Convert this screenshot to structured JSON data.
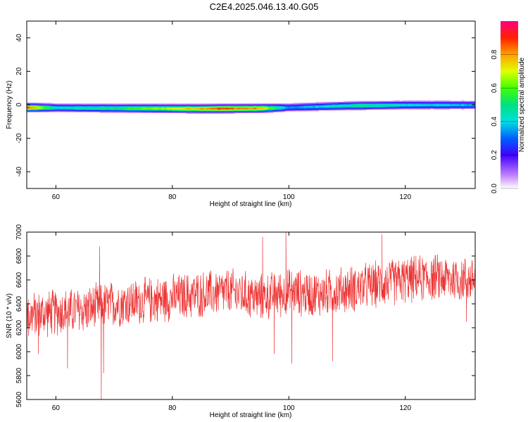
{
  "chart_data": {
    "title": "C2E4.2025.046.13.40.G05",
    "panels": [
      {
        "type": "heatmap",
        "xlabel": "Height of straight line (km)",
        "ylabel": "Frequency (Hz)",
        "xlim": [
          55,
          132
        ],
        "ylim": [
          -50,
          50
        ],
        "xticks": [
          60,
          80,
          100,
          120
        ],
        "yticks": [
          -40,
          -20,
          0,
          20,
          40
        ],
        "colorbar": {
          "label": "Normalized spectral amplitude",
          "range": [
            0,
            1
          ],
          "ticks": [
            "0.0",
            "0.2",
            "0.4",
            "0.6",
            "0.8"
          ]
        },
        "center_frequency": [
          {
            "x": 55,
            "y": -1.5
          },
          {
            "x": 65,
            "y": -1.8
          },
          {
            "x": 75,
            "y": -2.0
          },
          {
            "x": 85,
            "y": -2.2
          },
          {
            "x": 95,
            "y": -2.0
          },
          {
            "x": 100,
            "y": -1.5
          },
          {
            "x": 110,
            "y": -0.5
          },
          {
            "x": 120,
            "y": 0
          },
          {
            "x": 132,
            "y": 0
          }
        ],
        "peak_amplitude": [
          {
            "x": 55,
            "v": 0.95
          },
          {
            "x": 60,
            "v": 0.45
          },
          {
            "x": 70,
            "v": 0.55
          },
          {
            "x": 80,
            "v": 0.75
          },
          {
            "x": 88,
            "v": 0.95
          },
          {
            "x": 95,
            "v": 0.85
          },
          {
            "x": 100,
            "v": 0.35
          },
          {
            "x": 113,
            "v": 0.55
          },
          {
            "x": 120,
            "v": 0.45
          },
          {
            "x": 132,
            "v": 0.4
          }
        ]
      },
      {
        "type": "line",
        "xlabel": "Height of straight line (km)",
        "ylabel": "SNR (10 * v/v)",
        "xlim": [
          55,
          132
        ],
        "ylim": [
          5600,
          7000
        ],
        "xticks": [
          60,
          80,
          100,
          120
        ],
        "yticks": [
          5600,
          5800,
          6000,
          6200,
          6400,
          6600,
          6800,
          7000
        ],
        "series": [
          {
            "color": "#ee3333",
            "trend": [
              {
                "x": 55,
                "y": 6300
              },
              {
                "x": 60,
                "y": 6330
              },
              {
                "x": 65,
                "y": 6350
              },
              {
                "x": 70,
                "y": 6400
              },
              {
                "x": 75,
                "y": 6420
              },
              {
                "x": 80,
                "y": 6450
              },
              {
                "x": 85,
                "y": 6480
              },
              {
                "x": 90,
                "y": 6500
              },
              {
                "x": 95,
                "y": 6450
              },
              {
                "x": 100,
                "y": 6500
              },
              {
                "x": 105,
                "y": 6480
              },
              {
                "x": 110,
                "y": 6520
              },
              {
                "x": 115,
                "y": 6560
              },
              {
                "x": 120,
                "y": 6600
              },
              {
                "x": 125,
                "y": 6620
              },
              {
                "x": 132,
                "y": 6600
              }
            ],
            "noise_range": 220,
            "spikes": [
              {
                "x": 57,
                "y": 5980
              },
              {
                "x": 62,
                "y": 5860
              },
              {
                "x": 67.5,
                "y": 6880
              },
              {
                "x": 67.8,
                "y": 5560
              },
              {
                "x": 68.2,
                "y": 5820
              },
              {
                "x": 95.5,
                "y": 6960
              },
              {
                "x": 97.5,
                "y": 5980
              },
              {
                "x": 99.5,
                "y": 7000
              },
              {
                "x": 100.5,
                "y": 5900
              },
              {
                "x": 107.5,
                "y": 5920
              },
              {
                "x": 116,
                "y": 6980
              },
              {
                "x": 130.5,
                "y": 6250
              }
            ]
          }
        ]
      }
    ]
  }
}
